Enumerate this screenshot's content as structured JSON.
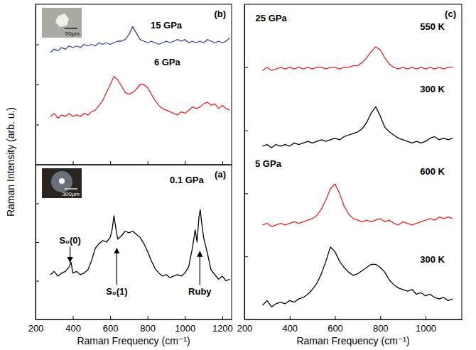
{
  "chart_data": [
    {
      "type": "line",
      "title": "(a)",
      "xlabel": "Raman Frequency (cm⁻¹)",
      "ylabel": "Raman Intensity (arb. u.)",
      "xlim": [
        200,
        1250
      ],
      "xticks": [
        200,
        400,
        600,
        800,
        1000,
        1200
      ],
      "ylim": [
        0,
        10
      ],
      "yticks": [
        2.5,
        5,
        7.5
      ],
      "tick_labels": "x",
      "inset": "300µm",
      "series": [
        {
          "name": "0.1 GPa",
          "color": "#000000",
          "label_at": [
            1010,
            8.8
          ],
          "x": [
            280,
            300,
            320,
            340,
            360,
            380,
            390,
            400,
            420,
            440,
            460,
            480,
            500,
            520,
            540,
            560,
            580,
            600,
            610,
            620,
            630,
            640,
            660,
            680,
            700,
            720,
            740,
            760,
            780,
            800,
            820,
            840,
            860,
            880,
            900,
            920,
            940,
            960,
            980,
            1000,
            1020,
            1040,
            1055,
            1065,
            1075,
            1082,
            1090,
            1100,
            1110,
            1120,
            1140,
            1160,
            1180,
            1200,
            1220,
            1240
          ],
          "values": [
            2.9,
            3.1,
            2.8,
            3.0,
            3.1,
            3.4,
            3.7,
            3.0,
            3.1,
            2.9,
            3.0,
            3.2,
            3.8,
            4.6,
            4.9,
            5.1,
            5.0,
            5.3,
            5.8,
            6.7,
            5.9,
            5.2,
            5.4,
            5.7,
            5.6,
            5.7,
            5.5,
            5.3,
            4.9,
            4.4,
            3.8,
            3.3,
            3.0,
            2.8,
            2.9,
            2.7,
            2.8,
            2.9,
            2.8,
            3.0,
            3.4,
            4.6,
            5.8,
            5.0,
            6.6,
            7.1,
            6.2,
            5.3,
            4.8,
            4.3,
            3.2,
            2.9,
            2.6,
            2.8,
            2.5,
            2.6
          ]
        }
      ],
      "annotations": [
        {
          "text": "S₀(0)",
          "x": 385,
          "y": 4.9,
          "arrow_to": [
            385,
            3.7
          ]
        },
        {
          "text": "S₀(1)",
          "x": 635,
          "y": 1.6,
          "arrow_to": [
            635,
            4.6
          ]
        },
        {
          "text": "Ruby",
          "x": 1080,
          "y": 1.6,
          "arrow_to": [
            1080,
            4.4
          ]
        }
      ]
    },
    {
      "type": "line",
      "title": "(b)",
      "xlim": [
        200,
        1250
      ],
      "xticks": [
        200,
        400,
        600,
        800,
        1000,
        1200
      ],
      "ylim": [
        0,
        10
      ],
      "yticks": [
        2.5,
        5,
        7.5
      ],
      "tick_labels": false,
      "inset": "50µm",
      "series": [
        {
          "name": "6 GPa",
          "color": "#e3261f",
          "label_at": [
            905,
            6.2
          ],
          "x": [
            280,
            300,
            320,
            340,
            360,
            380,
            400,
            420,
            440,
            460,
            480,
            500,
            520,
            540,
            560,
            580,
            600,
            620,
            640,
            660,
            680,
            700,
            720,
            740,
            760,
            780,
            800,
            820,
            840,
            860,
            880,
            900,
            920,
            940,
            960,
            980,
            1000,
            1020,
            1040,
            1060,
            1080,
            1100,
            1120,
            1140,
            1160,
            1180,
            1200,
            1220,
            1240
          ],
          "values": [
            3.0,
            3.2,
            2.9,
            3.1,
            3.0,
            3.2,
            3.0,
            3.1,
            3.0,
            3.2,
            3.1,
            3.3,
            3.4,
            3.7,
            4.0,
            4.5,
            5.0,
            5.5,
            5.3,
            4.9,
            4.5,
            4.4,
            4.5,
            4.7,
            5.0,
            5.0,
            4.8,
            4.4,
            4.0,
            3.7,
            3.5,
            3.4,
            3.3,
            3.2,
            3.1,
            3.3,
            3.2,
            3.4,
            3.6,
            3.5,
            3.6,
            3.8,
            3.9,
            3.7,
            3.8,
            3.5,
            3.7,
            3.5,
            3.4
          ]
        },
        {
          "name": "15 GPa",
          "color": "#2f3f9f",
          "label_at": [
            900,
            8.5
          ],
          "x": [
            280,
            300,
            320,
            340,
            360,
            380,
            400,
            420,
            440,
            460,
            480,
            500,
            520,
            540,
            560,
            580,
            600,
            620,
            640,
            660,
            680,
            700,
            720,
            740,
            760,
            780,
            800,
            820,
            840,
            860,
            880,
            900,
            920,
            940,
            960,
            980,
            1000,
            1020,
            1040,
            1060,
            1080,
            1100,
            1120,
            1140,
            1160,
            1180,
            1200,
            1220,
            1240
          ],
          "values": [
            7.0,
            7.2,
            7.1,
            7.3,
            7.2,
            7.4,
            7.3,
            7.4,
            7.3,
            7.5,
            7.4,
            7.5,
            7.4,
            7.6,
            7.5,
            7.6,
            7.5,
            7.6,
            7.7,
            7.7,
            7.8,
            8.1,
            8.6,
            8.2,
            7.8,
            7.7,
            7.6,
            7.7,
            7.6,
            7.5,
            7.6,
            7.7,
            7.6,
            7.7,
            7.8,
            7.7,
            7.8,
            7.6,
            7.7,
            7.6,
            7.7,
            7.6,
            7.8,
            7.7,
            7.6,
            7.7,
            7.6,
            7.7,
            7.9
          ]
        }
      ]
    },
    {
      "type": "line",
      "title": "(c)",
      "xlabel": "Raman Frequency (cm⁻¹)",
      "xlim": [
        200,
        1160
      ],
      "xticks": [
        200,
        400,
        600,
        800,
        1000
      ],
      "ylim": [
        0,
        20
      ],
      "yticks": [
        4,
        8,
        12,
        16
      ],
      "tick_labels": "x",
      "series": [
        {
          "name": "300 K",
          "color": "#000000",
          "label_at": [
            1030,
            3.6
          ],
          "x": [
            280,
            300,
            320,
            340,
            360,
            380,
            400,
            420,
            440,
            460,
            480,
            500,
            520,
            540,
            560,
            580,
            600,
            620,
            640,
            660,
            680,
            700,
            720,
            740,
            760,
            780,
            800,
            820,
            840,
            860,
            880,
            900,
            920,
            940,
            960,
            980,
            1000,
            1020,
            1040,
            1060,
            1080,
            1100,
            1120
          ],
          "values": [
            0.9,
            1.2,
            0.8,
            1.0,
            1.1,
            1.0,
            1.2,
            1.1,
            1.3,
            1.4,
            1.6,
            1.9,
            2.3,
            2.9,
            3.7,
            4.6,
            4.3,
            3.7,
            3.3,
            3.0,
            2.8,
            2.9,
            3.1,
            3.3,
            3.5,
            3.5,
            3.3,
            3.0,
            2.5,
            2.2,
            2.0,
            1.9,
            1.8,
            1.9,
            1.6,
            1.7,
            1.5,
            1.6,
            1.4,
            1.3,
            1.4,
            1.2,
            1.3
          ]
        },
        {
          "name": "600 K",
          "color": "#e3261f",
          "label_at": [
            1030,
            9.2
          ],
          "x": [
            280,
            300,
            320,
            340,
            360,
            380,
            400,
            420,
            440,
            460,
            480,
            500,
            520,
            540,
            560,
            580,
            600,
            620,
            640,
            660,
            680,
            700,
            720,
            740,
            760,
            780,
            800,
            820,
            840,
            860,
            880,
            900,
            920,
            940,
            960,
            980,
            1000,
            1020,
            1040,
            1060,
            1080,
            1100,
            1120
          ],
          "values": [
            6.0,
            6.1,
            5.9,
            6.0,
            6.1,
            6.0,
            6.1,
            6.2,
            6.1,
            6.2,
            6.3,
            6.4,
            6.6,
            7.0,
            7.6,
            8.3,
            8.6,
            8.0,
            7.2,
            6.7,
            6.4,
            6.3,
            6.2,
            6.3,
            6.2,
            6.3,
            6.4,
            6.2,
            6.3,
            6.1,
            6.0,
            6.2,
            6.1,
            6.0,
            6.1,
            6.2,
            6.3,
            6.4,
            6.3,
            6.5,
            6.4,
            6.5,
            6.4
          ]
        },
        {
          "name": "300 K",
          "color": "#000000",
          "label_at": [
            1030,
            14.4
          ],
          "x": [
            280,
            300,
            320,
            340,
            360,
            380,
            400,
            420,
            440,
            460,
            480,
            500,
            520,
            540,
            560,
            580,
            600,
            620,
            640,
            660,
            680,
            700,
            720,
            740,
            760,
            780,
            800,
            820,
            840,
            860,
            880,
            900,
            920,
            940,
            960,
            980,
            1000,
            1020,
            1040,
            1060,
            1080,
            1100,
            1120
          ],
          "values": [
            11.0,
            11.1,
            10.9,
            11.1,
            11.0,
            11.1,
            11.0,
            11.2,
            11.1,
            11.2,
            11.3,
            11.2,
            11.3,
            11.4,
            11.3,
            11.4,
            11.5,
            11.4,
            11.6,
            11.7,
            11.8,
            11.9,
            12.1,
            12.5,
            13.1,
            13.5,
            12.9,
            12.2,
            11.9,
            11.7,
            11.5,
            11.4,
            11.3,
            11.2,
            11.3,
            11.2,
            11.3,
            11.5,
            11.6,
            11.4,
            11.5,
            11.4,
            11.5
          ]
        },
        {
          "name": "550 K",
          "color": "#e3261f",
          "label_at": [
            1030,
            18.4
          ],
          "x": [
            280,
            300,
            320,
            340,
            360,
            380,
            400,
            420,
            440,
            460,
            480,
            500,
            520,
            540,
            560,
            580,
            600,
            620,
            640,
            660,
            680,
            700,
            720,
            740,
            760,
            780,
            800,
            820,
            840,
            860,
            880,
            900,
            920,
            940,
            960,
            980,
            1000,
            1020,
            1040,
            1060,
            1080,
            1100,
            1120
          ],
          "values": [
            15.8,
            16.0,
            15.8,
            15.9,
            16.0,
            15.9,
            16.0,
            15.9,
            16.0,
            15.9,
            16.0,
            15.9,
            16.0,
            16.0,
            15.9,
            16.0,
            16.0,
            15.9,
            16.0,
            16.0,
            16.1,
            16.1,
            16.3,
            16.6,
            17.0,
            17.3,
            17.1,
            16.6,
            16.2,
            16.0,
            15.9,
            16.0,
            15.9,
            16.0,
            15.9,
            16.0,
            15.9,
            16.0,
            15.9,
            16.0,
            15.9,
            16.0,
            16.0
          ]
        }
      ],
      "annotations": [
        {
          "text": "25 GPa",
          "x": 318,
          "y": 18.9
        },
        {
          "text": "5 GPa",
          "x": 305,
          "y": 9.7
        }
      ]
    }
  ]
}
